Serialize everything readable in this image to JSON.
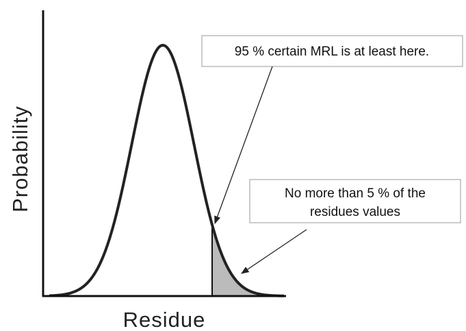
{
  "axes": {
    "y_label": "Probability",
    "x_label": "Residue"
  },
  "annotations": [
    {
      "lines": [
        "95 % certain MRL is at least here."
      ]
    },
    {
      "lines": [
        "No more than 5 % of the",
        "residues values"
      ]
    }
  ]
}
